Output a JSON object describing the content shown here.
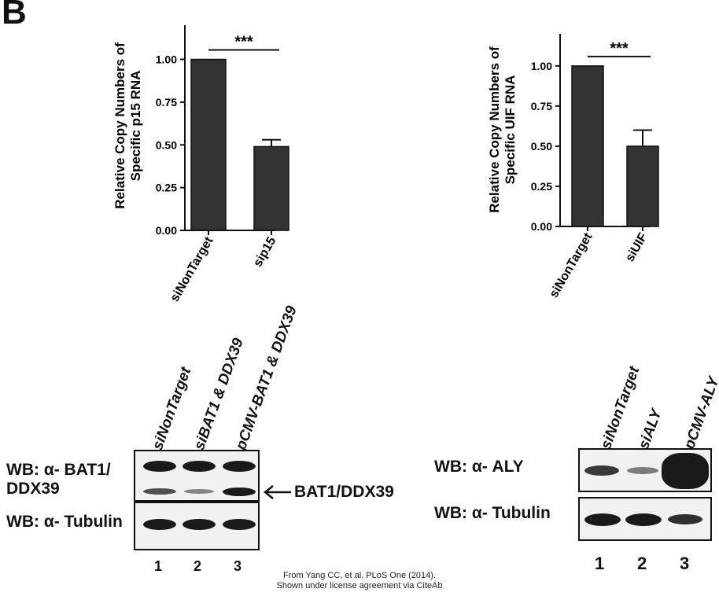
{
  "panel_label": "B",
  "chart_data": [
    {
      "type": "bar",
      "categories": [
        "siNonTarget",
        "sip15"
      ],
      "values": [
        1.0,
        0.49
      ],
      "errors": [
        0.0,
        0.04
      ],
      "title": "",
      "xlabel": "",
      "ylabel_lines": [
        "Relative Copy Numbers of",
        "Specific p15  RNA"
      ],
      "ylim": [
        0,
        1.2
      ],
      "yticks": [
        "0.00",
        "0.25",
        "0.50",
        "0.75",
        "1.00"
      ],
      "ytick_values": [
        0,
        0.25,
        0.5,
        0.75,
        1.0
      ],
      "significance": "***",
      "bar_color": "#333333",
      "grid": false
    },
    {
      "type": "bar",
      "categories": [
        "siNonTarget",
        "siUIF"
      ],
      "values": [
        1.0,
        0.5
      ],
      "errors": [
        0.0,
        0.1
      ],
      "title": "",
      "xlabel": "",
      "ylabel_lines": [
        "Relative Copy Numbers of",
        "Specific UIF  RNA"
      ],
      "ylim": [
        0,
        1.2
      ],
      "yticks": [
        "0.00",
        "0.25",
        "0.50",
        "0.75",
        "1.00"
      ],
      "ytick_values": [
        0,
        0.25,
        0.5,
        0.75,
        1.0
      ],
      "significance": "***",
      "bar_color": "#333333",
      "grid": false
    }
  ],
  "blot_left": {
    "lanes": [
      "siNonTarget",
      "siBAT1 & DDX39",
      "pCMV-BAT1 & DDX39"
    ],
    "lane_numbers": [
      "1",
      "2",
      "3"
    ],
    "label_1_line1": "WB: α- BAT1/",
    "label_1_line2": "DDX39",
    "label_2": "WB: α- Tubulin",
    "arrow_label": "BAT1/DDX39",
    "band_intensity_upper": [
      1.0,
      1.0,
      1.0
    ],
    "band_intensity_lower": [
      0.7,
      0.45,
      0.95
    ],
    "band_intensity_tubulin": [
      1.0,
      1.0,
      1.0
    ]
  },
  "blot_right": {
    "lanes": [
      "siNonTarget",
      "siALY",
      "pCMV-ALY"
    ],
    "lane_numbers": [
      "1",
      "2",
      "3"
    ],
    "label_1": "WB: α- ALY",
    "label_2": "WB: α- Tubulin",
    "band_intensity_aly": [
      0.7,
      0.35,
      1.0
    ],
    "band_intensity_tubulin": [
      1.0,
      1.0,
      0.8
    ]
  },
  "credit_line1": "From Yang CC, et al. PLoS One (2014).",
  "credit_line2": "Shown under license agreement via CiteAb"
}
